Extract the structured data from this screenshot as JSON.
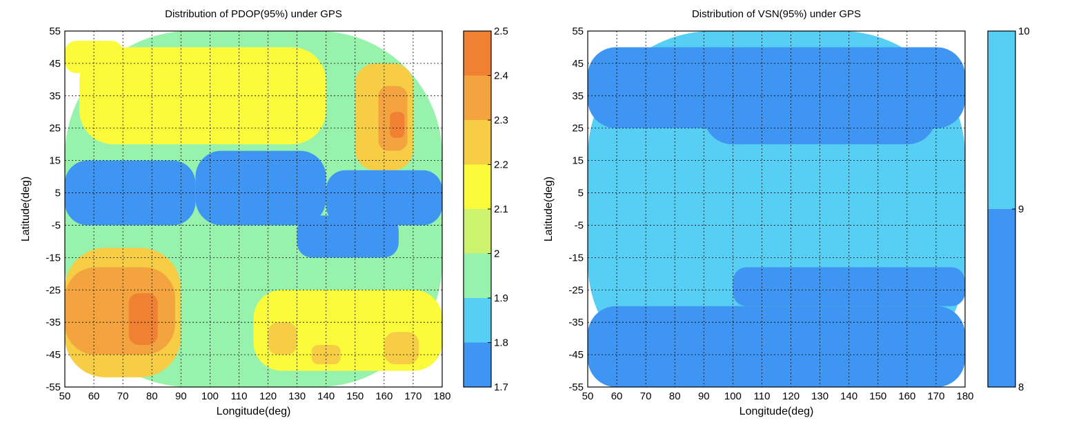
{
  "chart_data": [
    {
      "type": "heatmap",
      "title": "Distribution of PDOP(95%) under GPS",
      "xlabel": "Longitude(deg)",
      "ylabel": "Latitude(deg)",
      "xlim": [
        50,
        180
      ],
      "ylim": [
        -55,
        55
      ],
      "x_ticks": [
        "50",
        "60",
        "70",
        "80",
        "90",
        "100",
        "110",
        "120",
        "130",
        "140",
        "150",
        "160",
        "170",
        "180"
      ],
      "y_ticks": [
        "55",
        "45",
        "35",
        "25",
        "15",
        "5",
        "-5",
        "-15",
        "-25",
        "-35",
        "-45",
        "-55"
      ],
      "grid": true,
      "colorbar": {
        "levels": [
          1.7,
          1.8,
          1.9,
          2.0,
          2.1,
          2.2,
          2.3,
          2.4,
          2.5
        ],
        "tick_labels": [
          "1.7",
          "1.8",
          "1.9",
          "2",
          "2.1",
          "2.2",
          "2.3",
          "2.4",
          "2.5"
        ],
        "colors": [
          "#3f95f2",
          "#57cff4",
          "#97f3ac",
          "#cdf26d",
          "#fbfb3c",
          "#f6cd45",
          "#f4a43f",
          "#f18132"
        ]
      },
      "approx_regions": [
        {
          "lon": [
            50,
            180
          ],
          "lat": [
            -55,
            55
          ],
          "value": 1.95
        },
        {
          "lon": [
            55,
            140
          ],
          "lat": [
            20,
            50
          ],
          "value": 2.15
        },
        {
          "lon": [
            50,
            70
          ],
          "lat": [
            42,
            52
          ],
          "value": 2.15
        },
        {
          "lon": [
            150,
            170
          ],
          "lat": [
            12,
            45
          ],
          "value": 2.25
        },
        {
          "lon": [
            158,
            168
          ],
          "lat": [
            18,
            38
          ],
          "value": 2.35
        },
        {
          "lon": [
            162,
            167
          ],
          "lat": [
            22,
            30
          ],
          "value": 2.42
        },
        {
          "lon": [
            95,
            140
          ],
          "lat": [
            -5,
            18
          ],
          "value": 1.75
        },
        {
          "lon": [
            50,
            95
          ],
          "lat": [
            -5,
            15
          ],
          "value": 1.75
        },
        {
          "lon": [
            140,
            180
          ],
          "lat": [
            -5,
            12
          ],
          "value": 1.75
        },
        {
          "lon": [
            130,
            165
          ],
          "lat": [
            -15,
            -2
          ],
          "value": 1.75
        },
        {
          "lon": [
            50,
            90
          ],
          "lat": [
            -52,
            -12
          ],
          "value": 2.2
        },
        {
          "lon": [
            50,
            88
          ],
          "lat": [
            -45,
            -18
          ],
          "value": 2.3
        },
        {
          "lon": [
            72,
            82
          ],
          "lat": [
            -42,
            -26
          ],
          "value": 2.42
        },
        {
          "lon": [
            115,
            180
          ],
          "lat": [
            -50,
            -25
          ],
          "value": 2.15
        },
        {
          "lon": [
            120,
            130
          ],
          "lat": [
            -45,
            -35
          ],
          "value": 2.25
        },
        {
          "lon": [
            160,
            172
          ],
          "lat": [
            -48,
            -38
          ],
          "value": 2.25
        },
        {
          "lon": [
            135,
            145
          ],
          "lat": [
            -48,
            -42
          ],
          "value": 2.25
        }
      ]
    },
    {
      "type": "heatmap",
      "title": "Distribution of VSN(95%) under GPS",
      "xlabel": "Longitude(deg)",
      "ylabel": "Latitude(deg)",
      "xlim": [
        50,
        180
      ],
      "ylim": [
        -55,
        55
      ],
      "x_ticks": [
        "50",
        "60",
        "70",
        "80",
        "90",
        "100",
        "110",
        "120",
        "130",
        "140",
        "150",
        "160",
        "170",
        "180"
      ],
      "y_ticks": [
        "55",
        "45",
        "35",
        "25",
        "15",
        "5",
        "-5",
        "-15",
        "-25",
        "-35",
        "-45",
        "-55"
      ],
      "grid": true,
      "colorbar": {
        "levels": [
          8,
          9,
          10
        ],
        "tick_labels": [
          "8",
          "9",
          "10"
        ],
        "colors": [
          "#3f95f2",
          "#57cff4"
        ]
      },
      "approx_regions": [
        {
          "lon": [
            50,
            180
          ],
          "lat": [
            -55,
            55
          ],
          "value": 9
        },
        {
          "lon": [
            50,
            180
          ],
          "lat": [
            25,
            50
          ],
          "value": 8
        },
        {
          "lon": [
            90,
            170
          ],
          "lat": [
            20,
            45
          ],
          "value": 8
        },
        {
          "lon": [
            50,
            180
          ],
          "lat": [
            -55,
            -30
          ],
          "value": 8
        },
        {
          "lon": [
            100,
            180
          ],
          "lat": [
            -30,
            -18
          ],
          "value": 8
        }
      ]
    }
  ]
}
